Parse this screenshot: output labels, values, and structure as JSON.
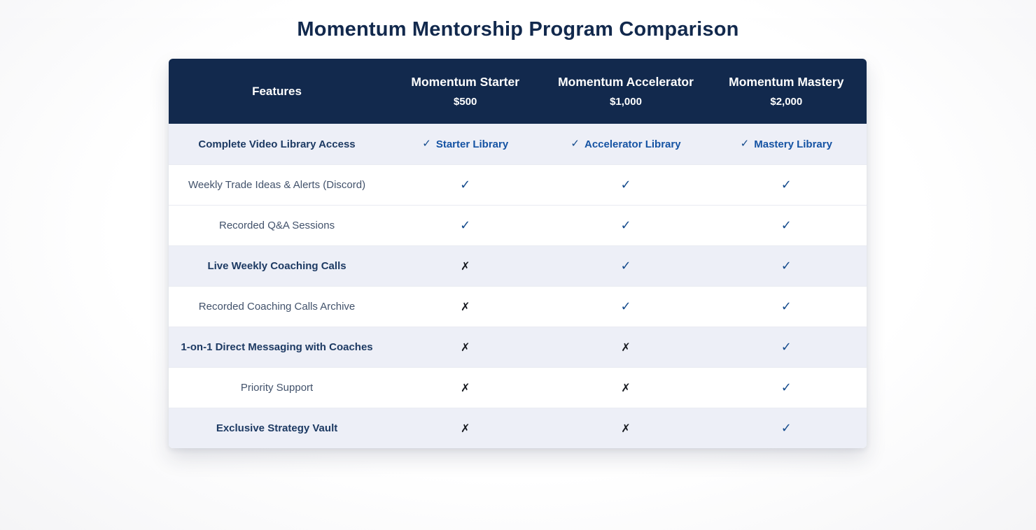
{
  "page": {
    "title": "Momentum Mentorship Program Comparison"
  },
  "table": {
    "features_header": "Features",
    "programs": [
      {
        "name": "Momentum Starter",
        "price": "$500"
      },
      {
        "name": "Momentum Accelerator",
        "price": "$1,000"
      },
      {
        "name": "Momentum Mastery",
        "price": "$2,000"
      }
    ],
    "symbols": {
      "check": "✓",
      "cross": "✗"
    },
    "rows": [
      {
        "feature": "Complete Video Library Access",
        "highlight": true,
        "cells": [
          {
            "mark": "check",
            "label": "Starter Library"
          },
          {
            "mark": "check",
            "label": "Accelerator Library"
          },
          {
            "mark": "check",
            "label": "Mastery Library"
          }
        ]
      },
      {
        "feature": "Weekly Trade Ideas & Alerts (Discord)",
        "highlight": false,
        "cells": [
          {
            "mark": "check"
          },
          {
            "mark": "check"
          },
          {
            "mark": "check"
          }
        ]
      },
      {
        "feature": "Recorded Q&A Sessions",
        "highlight": false,
        "cells": [
          {
            "mark": "check"
          },
          {
            "mark": "check"
          },
          {
            "mark": "check"
          }
        ]
      },
      {
        "feature": "Live Weekly Coaching Calls",
        "highlight": true,
        "cells": [
          {
            "mark": "cross"
          },
          {
            "mark": "check"
          },
          {
            "mark": "check"
          }
        ]
      },
      {
        "feature": "Recorded Coaching Calls Archive",
        "highlight": false,
        "cells": [
          {
            "mark": "cross"
          },
          {
            "mark": "check"
          },
          {
            "mark": "check"
          }
        ]
      },
      {
        "feature": "1-on-1 Direct Messaging with Coaches",
        "highlight": true,
        "cells": [
          {
            "mark": "cross"
          },
          {
            "mark": "cross"
          },
          {
            "mark": "check"
          }
        ]
      },
      {
        "feature": "Priority Support",
        "highlight": false,
        "cells": [
          {
            "mark": "cross"
          },
          {
            "mark": "cross"
          },
          {
            "mark": "check"
          }
        ]
      },
      {
        "feature": "Exclusive Strategy Vault",
        "highlight": true,
        "cells": [
          {
            "mark": "cross"
          },
          {
            "mark": "cross"
          },
          {
            "mark": "check"
          }
        ]
      }
    ],
    "colors": {
      "header_bg": "#12294d",
      "header_text": "#ffffff",
      "highlight_row_bg": "#edeff7",
      "check": "#134a8c",
      "cross": "#15181e",
      "blue_cell_text": "#1553a3",
      "feature_text": "#42526b",
      "feature_bold_text": "#1d3a63",
      "title_text": "#12294d"
    }
  }
}
